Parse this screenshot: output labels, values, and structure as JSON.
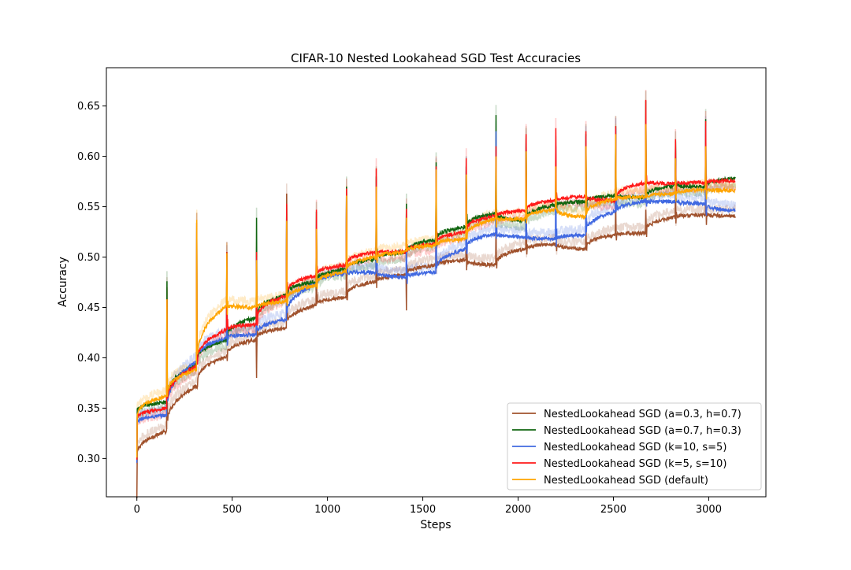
{
  "chart_data": {
    "type": "line",
    "title": "CIFAR-10 Nested Lookahead SGD Test Accuracies",
    "xlabel": "Steps",
    "ylabel": "Accuracy",
    "xlim": [
      -160,
      3300
    ],
    "ylim": [
      0.262,
      0.688
    ],
    "xticks": [
      0,
      500,
      1000,
      1500,
      2000,
      2500,
      3000
    ],
    "xtick_labels": [
      "0",
      "500",
      "1000",
      "1500",
      "2000",
      "2500",
      "3000"
    ],
    "yticks": [
      0.3,
      0.35,
      0.4,
      0.45,
      0.5,
      0.55,
      0.6,
      0.65
    ],
    "ytick_labels": [
      "0.30",
      "0.35",
      "0.40",
      "0.45",
      "0.50",
      "0.55",
      "0.60",
      "0.65"
    ],
    "grid": false,
    "legend_position": "lower-right",
    "epoch_steps": [
      0,
      157,
      314,
      471,
      628,
      785,
      942,
      1099,
      1256,
      1413,
      1570,
      1727,
      1884,
      2041,
      2198,
      2355,
      2512,
      2669,
      2826,
      2983,
      3140
    ],
    "series": [
      {
        "name": "NestedLookahead SGD (a=0.3, h=0.7)",
        "color": "#a0522d",
        "epoch_levels": [
          0.3,
          0.327,
          0.372,
          0.401,
          0.418,
          0.43,
          0.452,
          0.46,
          0.476,
          0.482,
          0.492,
          0.497,
          0.492,
          0.508,
          0.513,
          0.508,
          0.522,
          0.524,
          0.54,
          0.542,
          0.541
        ],
        "epoch_peaks": [
          0.326,
          0.47,
          0.37,
          0.402,
          0.38,
          0.563,
          0.52,
          0.559,
          0.578,
          0.447,
          0.574,
          0.53,
          0.537,
          0.62,
          0.51,
          0.54,
          0.555,
          0.547,
          0.6,
          0.57
        ]
      },
      {
        "name": "NestedLookahead SGD (a=0.7, h=0.3)",
        "color": "#116611",
        "epoch_levels": [
          0.346,
          0.356,
          0.393,
          0.418,
          0.44,
          0.462,
          0.476,
          0.488,
          0.498,
          0.505,
          0.517,
          0.53,
          0.543,
          0.536,
          0.552,
          0.555,
          0.561,
          0.559,
          0.571,
          0.57,
          0.578
        ],
        "epoch_peaks": [
          0.38,
          0.476,
          0.534,
          0.505,
          0.539,
          0.552,
          0.545,
          0.57,
          0.58,
          0.553,
          0.594,
          0.59,
          0.641,
          0.618,
          0.575,
          0.622,
          0.63,
          0.655,
          0.615,
          0.637
        ]
      },
      {
        "name": "NestedLookahead SGD (k=10, s=5)",
        "color": "#4169e1",
        "epoch_levels": [
          0.335,
          0.343,
          0.396,
          0.42,
          0.423,
          0.438,
          0.473,
          0.484,
          0.485,
          0.48,
          0.485,
          0.508,
          0.523,
          0.52,
          0.518,
          0.522,
          0.545,
          0.555,
          0.555,
          0.553,
          0.546
        ],
        "epoch_peaks": [
          0.364,
          0.408,
          0.435,
          0.502,
          0.5,
          0.52,
          0.52,
          0.548,
          0.57,
          0.522,
          0.588,
          0.59,
          0.625,
          0.612,
          0.61,
          0.62,
          0.628,
          0.61,
          0.598,
          0.63
        ]
      },
      {
        "name": "NestedLookahead SGD (k=5, s=10)",
        "color": "#ff1a1a",
        "epoch_levels": [
          0.338,
          0.35,
          0.392,
          0.428,
          0.433,
          0.462,
          0.482,
          0.492,
          0.505,
          0.505,
          0.513,
          0.525,
          0.541,
          0.546,
          0.556,
          0.56,
          0.556,
          0.574,
          0.573,
          0.574,
          0.576
        ],
        "epoch_peaks": [
          0.396,
          0.458,
          0.534,
          0.505,
          0.505,
          0.553,
          0.547,
          0.568,
          0.588,
          0.548,
          0.59,
          0.598,
          0.61,
          0.622,
          0.628,
          0.625,
          0.63,
          0.656,
          0.617,
          0.635
        ]
      },
      {
        "name": "NestedLookahead SGD (default)",
        "color": "#ffa500",
        "epoch_levels": [
          0.34,
          0.362,
          0.388,
          0.452,
          0.45,
          0.456,
          0.472,
          0.486,
          0.5,
          0.505,
          0.512,
          0.518,
          0.538,
          0.538,
          0.547,
          0.54,
          0.558,
          0.56,
          0.563,
          0.567,
          0.566
        ],
        "epoch_peaks": [
          0.397,
          0.458,
          0.537,
          0.504,
          0.497,
          0.536,
          0.528,
          0.561,
          0.57,
          0.539,
          0.587,
          0.582,
          0.6,
          0.605,
          0.59,
          0.61,
          0.622,
          0.632,
          0.598,
          0.61
        ]
      }
    ]
  }
}
